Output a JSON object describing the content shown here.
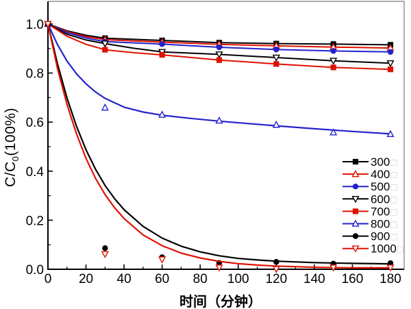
{
  "figure": {
    "bg_color": "#ffffff",
    "axis_color": "#000000",
    "box_color": "#777777",
    "y_axis": {
      "label_prefix": "C/C",
      "label_sub": "0",
      "label_suffix": "(100%)",
      "tick_labels": [
        "0.0",
        "0.2",
        "0.4",
        "0.6",
        "0.8",
        "1.0"
      ],
      "tick_values": [
        0,
        0.2,
        0.4,
        0.6,
        0.8,
        1.0
      ],
      "minor_tick_values": [
        0.1,
        0.3,
        0.5,
        0.7,
        0.9
      ]
    },
    "x_axis": {
      "label": "时间（分钟）",
      "tick_labels": [
        "0",
        "20",
        "40",
        "60",
        "80",
        "100",
        "120",
        "140",
        "160",
        "180"
      ],
      "tick_values": [
        0,
        20,
        40,
        60,
        80,
        100,
        120,
        140,
        160,
        180
      ],
      "minor_tick_values": [
        10,
        30,
        50,
        70,
        90,
        110,
        130,
        150,
        170
      ]
    },
    "legend": {
      "unit_glyph": "□",
      "unit_glyph_color": "#c8c8c8"
    }
  },
  "chart_data": {
    "type": "line",
    "title": "",
    "xlabel": "时间（分钟）",
    "ylabel": "C/C0(100%)",
    "xlim": [
      0,
      187
    ],
    "ylim": [
      0,
      1.09
    ],
    "grid": false,
    "legend_position": "right-center",
    "x": [
      0,
      30,
      60,
      90,
      120,
      150,
      180
    ],
    "series": [
      {
        "name": "300",
        "unit": "□",
        "color": "#000000",
        "marker": "square",
        "filled": true,
        "line_width": 2,
        "values": [
          1.0,
          0.942,
          0.933,
          0.924,
          0.92,
          0.918,
          0.915
        ],
        "fit_curve": [
          [
            0,
            1.0
          ],
          [
            10,
            0.972
          ],
          [
            20,
            0.954
          ],
          [
            30,
            0.942
          ],
          [
            60,
            0.933
          ],
          [
            90,
            0.924
          ],
          [
            120,
            0.92
          ],
          [
            150,
            0.918
          ],
          [
            180,
            0.915
          ]
        ]
      },
      {
        "name": "400",
        "unit": "□",
        "color": "#e01000",
        "marker": "triangle-up",
        "filled": false,
        "line_width": 2,
        "values": [
          1.0,
          0.936,
          0.926,
          0.917,
          0.911,
          0.906,
          0.902
        ],
        "fit_curve": [
          [
            0,
            1.0
          ],
          [
            10,
            0.969
          ],
          [
            20,
            0.949
          ],
          [
            30,
            0.936
          ],
          [
            60,
            0.926
          ],
          [
            90,
            0.917
          ],
          [
            120,
            0.911
          ],
          [
            150,
            0.906
          ],
          [
            180,
            0.902
          ]
        ]
      },
      {
        "name": "500",
        "unit": "□",
        "color": "#2222cc",
        "marker": "circle",
        "filled": true,
        "line_width": 2,
        "values": [
          1.0,
          0.928,
          0.918,
          0.905,
          0.896,
          0.89,
          0.886
        ],
        "fit_curve": [
          [
            0,
            1.0
          ],
          [
            10,
            0.965
          ],
          [
            20,
            0.943
          ],
          [
            30,
            0.928
          ],
          [
            60,
            0.918
          ],
          [
            90,
            0.905
          ],
          [
            120,
            0.896
          ],
          [
            150,
            0.89
          ],
          [
            180,
            0.886
          ]
        ]
      },
      {
        "name": "600",
        "unit": "□",
        "color": "#000000",
        "marker": "triangle-down",
        "filled": false,
        "line_width": 2,
        "values": [
          1.0,
          0.92,
          0.886,
          0.876,
          0.863,
          0.85,
          0.84
        ],
        "fit_curve": [
          [
            0,
            1.0
          ],
          [
            10,
            0.958
          ],
          [
            20,
            0.935
          ],
          [
            30,
            0.92
          ],
          [
            45,
            0.901
          ],
          [
            60,
            0.886
          ],
          [
            90,
            0.876
          ],
          [
            120,
            0.863
          ],
          [
            150,
            0.85
          ],
          [
            180,
            0.84
          ]
        ]
      },
      {
        "name": "700",
        "unit": "□",
        "color": "#e01000",
        "marker": "square",
        "filled": true,
        "line_width": 2,
        "values": [
          1.0,
          0.895,
          0.874,
          0.853,
          0.837,
          0.823,
          0.815
        ],
        "fit_curve": [
          [
            0,
            1.0
          ],
          [
            10,
            0.95
          ],
          [
            20,
            0.917
          ],
          [
            30,
            0.895
          ],
          [
            45,
            0.883
          ],
          [
            60,
            0.874
          ],
          [
            90,
            0.853
          ],
          [
            120,
            0.837
          ],
          [
            150,
            0.823
          ],
          [
            180,
            0.815
          ]
        ]
      },
      {
        "name": "800",
        "unit": "□",
        "color": "#2222cc",
        "marker": "triangle-up",
        "filled": false,
        "line_width": 2.2,
        "values": [
          1.0,
          0.659,
          0.63,
          0.606,
          0.589,
          0.558,
          0.551
        ],
        "fit_curve": [
          [
            0,
            1.0
          ],
          [
            5,
            0.916
          ],
          [
            10,
            0.849
          ],
          [
            15,
            0.797
          ],
          [
            20,
            0.756
          ],
          [
            25,
            0.723
          ],
          [
            30,
            0.697
          ],
          [
            40,
            0.661
          ],
          [
            50,
            0.641
          ],
          [
            60,
            0.628
          ],
          [
            75,
            0.615
          ],
          [
            90,
            0.604
          ],
          [
            105,
            0.594
          ],
          [
            120,
            0.585
          ],
          [
            140,
            0.573
          ],
          [
            160,
            0.562
          ],
          [
            180,
            0.552
          ]
        ]
      },
      {
        "name": "900",
        "unit": "□",
        "color": "#000000",
        "marker": "circle",
        "filled": true,
        "line_width": 2.2,
        "values": [
          1.0,
          0.086,
          0.049,
          0.026,
          0.03,
          0.023,
          0.025
        ],
        "fit_curve": [
          [
            0,
            1.0
          ],
          [
            5,
            0.838
          ],
          [
            10,
            0.698
          ],
          [
            15,
            0.583
          ],
          [
            20,
            0.487
          ],
          [
            25,
            0.408
          ],
          [
            30,
            0.342
          ],
          [
            35,
            0.288
          ],
          [
            40,
            0.243
          ],
          [
            50,
            0.175
          ],
          [
            60,
            0.127
          ],
          [
            70,
            0.094
          ],
          [
            80,
            0.071
          ],
          [
            90,
            0.055
          ],
          [
            100,
            0.044
          ],
          [
            110,
            0.038
          ],
          [
            120,
            0.033
          ],
          [
            140,
            0.027
          ],
          [
            160,
            0.024
          ],
          [
            180,
            0.022
          ]
        ]
      },
      {
        "name": "1000",
        "unit": "□",
        "color": "#e01000",
        "marker": "triangle-down",
        "filled": false,
        "line_width": 2.2,
        "values": [
          1.0,
          0.062,
          0.04,
          0.007,
          0.001,
          0.007,
          0.007
        ],
        "fit_curve": [
          [
            0,
            1.0
          ],
          [
            5,
            0.819
          ],
          [
            10,
            0.672
          ],
          [
            15,
            0.552
          ],
          [
            20,
            0.452
          ],
          [
            25,
            0.371
          ],
          [
            30,
            0.305
          ],
          [
            35,
            0.251
          ],
          [
            40,
            0.207
          ],
          [
            50,
            0.14
          ],
          [
            60,
            0.096
          ],
          [
            70,
            0.066
          ],
          [
            80,
            0.046
          ],
          [
            90,
            0.032
          ],
          [
            100,
            0.023
          ],
          [
            110,
            0.017
          ],
          [
            120,
            0.013
          ],
          [
            140,
            0.008
          ],
          [
            160,
            0.006
          ],
          [
            180,
            0.006
          ]
        ]
      }
    ]
  }
}
